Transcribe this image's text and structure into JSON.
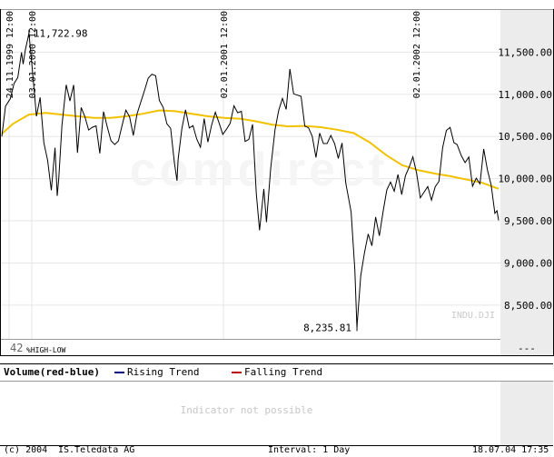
{
  "chart_data": {
    "type": "line",
    "instrument": "INDU.DJI",
    "watermark": "comdirect",
    "date_labels": [
      "24.11.1999 12:00",
      "03.01.2000 12:00",
      "02.01.2001 12:00",
      "02.01.2002 12:00"
    ],
    "y_ticks": [
      {
        "value": 8500,
        "label": "8,500.00"
      },
      {
        "value": 9000,
        "label": "9,000.00"
      },
      {
        "value": 9500,
        "label": "9,500.00"
      },
      {
        "value": 10000,
        "label": "10,000.00"
      },
      {
        "value": 10500,
        "label": "10,500.00"
      },
      {
        "value": 11000,
        "label": "11,000.00"
      },
      {
        "value": 11500,
        "label": "11,500.00"
      }
    ],
    "ylim": [
      8100,
      12000
    ],
    "high": {
      "label": "11,722.98",
      "date": "2000-01-14",
      "value": 11722.98
    },
    "low": {
      "label": "8,235.81",
      "date": "2001-09-21",
      "value": 8235.81
    },
    "corner_label": "42",
    "hilo_label": "%HIGH-LOW",
    "right_marker": "---",
    "series": [
      {
        "name": "INDU.DJI",
        "color": "#000000",
        "points": [
          [
            "1999-11-24",
            10500
          ],
          [
            "1999-12-01",
            10860
          ],
          [
            "1999-12-10",
            10950
          ],
          [
            "1999-12-17",
            11130
          ],
          [
            "1999-12-24",
            11200
          ],
          [
            "1999-12-31",
            11497
          ],
          [
            "2000-01-03",
            11357
          ],
          [
            "2000-01-07",
            11522
          ],
          [
            "2000-01-14",
            11723
          ],
          [
            "2000-01-21",
            11250
          ],
          [
            "2000-01-28",
            10740
          ],
          [
            "2000-02-04",
            10964
          ],
          [
            "2000-02-11",
            10425
          ],
          [
            "2000-02-18",
            10220
          ],
          [
            "2000-02-25",
            9862
          ],
          [
            "2000-03-03",
            10367
          ],
          [
            "2000-03-07",
            9796
          ],
          [
            "2000-03-10",
            10000
          ],
          [
            "2000-03-16",
            10630
          ],
          [
            "2000-03-24",
            11112
          ],
          [
            "2000-03-31",
            10922
          ],
          [
            "2000-04-07",
            11111
          ],
          [
            "2000-04-14",
            10306
          ],
          [
            "2000-04-21",
            10844
          ],
          [
            "2000-04-28",
            10734
          ],
          [
            "2000-05-05",
            10577
          ],
          [
            "2000-05-12",
            10609
          ],
          [
            "2000-05-19",
            10626
          ],
          [
            "2000-05-26",
            10300
          ],
          [
            "2000-06-02",
            10794
          ],
          [
            "2000-06-09",
            10615
          ],
          [
            "2000-06-16",
            10450
          ],
          [
            "2000-06-23",
            10404
          ],
          [
            "2000-06-30",
            10448
          ],
          [
            "2000-07-07",
            10635
          ],
          [
            "2000-07-14",
            10813
          ],
          [
            "2000-07-21",
            10733
          ],
          [
            "2000-07-28",
            10512
          ],
          [
            "2000-08-04",
            10767
          ],
          [
            "2000-08-11",
            10908
          ],
          [
            "2000-08-18",
            11046
          ],
          [
            "2000-08-25",
            11192
          ],
          [
            "2000-09-01",
            11238
          ],
          [
            "2000-09-08",
            11220
          ],
          [
            "2000-09-15",
            10927
          ],
          [
            "2000-09-22",
            10847
          ],
          [
            "2000-09-29",
            10651
          ],
          [
            "2000-10-06",
            10596
          ],
          [
            "2000-10-13",
            10192
          ],
          [
            "2000-10-18",
            9976
          ],
          [
            "2000-10-20",
            10226
          ],
          [
            "2000-10-27",
            10590
          ],
          [
            "2000-11-03",
            10817
          ],
          [
            "2000-11-10",
            10602
          ],
          [
            "2000-11-17",
            10629
          ],
          [
            "2000-11-24",
            10470
          ],
          [
            "2000-12-01",
            10373
          ],
          [
            "2000-12-08",
            10712
          ],
          [
            "2000-12-15",
            10434
          ],
          [
            "2000-12-22",
            10635
          ],
          [
            "2000-12-29",
            10788
          ],
          [
            "2001-01-05",
            10662
          ],
          [
            "2001-01-12",
            10525
          ],
          [
            "2001-01-19",
            10587
          ],
          [
            "2001-01-26",
            10659
          ],
          [
            "2001-02-02",
            10864
          ],
          [
            "2001-02-09",
            10781
          ],
          [
            "2001-02-16",
            10799
          ],
          [
            "2001-02-23",
            10441
          ],
          [
            "2001-03-02",
            10466
          ],
          [
            "2001-03-09",
            10644
          ],
          [
            "2001-03-16",
            9823
          ],
          [
            "2001-03-22",
            9389
          ],
          [
            "2001-03-30",
            9879
          ],
          [
            "2001-04-04",
            9485
          ],
          [
            "2001-04-12",
            10126
          ],
          [
            "2001-04-20",
            10579
          ],
          [
            "2001-04-27",
            10811
          ],
          [
            "2001-05-04",
            10951
          ],
          [
            "2001-05-11",
            10821
          ],
          [
            "2001-05-18",
            11301
          ],
          [
            "2001-05-25",
            11006
          ],
          [
            "2001-06-01",
            10990
          ],
          [
            "2001-06-08",
            10977
          ],
          [
            "2001-06-15",
            10623
          ],
          [
            "2001-06-22",
            10604
          ],
          [
            "2001-06-29",
            10502
          ],
          [
            "2001-07-06",
            10252
          ],
          [
            "2001-07-13",
            10539
          ],
          [
            "2001-07-20",
            10416
          ],
          [
            "2001-07-27",
            10417
          ],
          [
            "2001-08-03",
            10512
          ],
          [
            "2001-08-10",
            10416
          ],
          [
            "2001-08-17",
            10240
          ],
          [
            "2001-08-24",
            10423
          ],
          [
            "2001-08-31",
            9950
          ],
          [
            "2001-09-10",
            9606
          ],
          [
            "2001-09-17",
            8920
          ],
          [
            "2001-09-21",
            8236
          ],
          [
            "2001-09-28",
            8848
          ],
          [
            "2001-10-05",
            9120
          ],
          [
            "2001-10-12",
            9344
          ],
          [
            "2001-10-19",
            9204
          ],
          [
            "2001-10-26",
            9545
          ],
          [
            "2001-11-02",
            9323
          ],
          [
            "2001-11-09",
            9608
          ],
          [
            "2001-11-16",
            9867
          ],
          [
            "2001-11-23",
            9960
          ],
          [
            "2001-11-30",
            9851
          ],
          [
            "2001-12-07",
            10049
          ],
          [
            "2001-12-14",
            9812
          ],
          [
            "2001-12-21",
            10035
          ],
          [
            "2001-12-28",
            10136
          ],
          [
            "2002-01-04",
            10259
          ],
          [
            "2002-01-11",
            10067
          ],
          [
            "2002-01-18",
            9772
          ],
          [
            "2002-01-25",
            9840
          ],
          [
            "2002-02-01",
            9907
          ],
          [
            "2002-02-08",
            9745
          ],
          [
            "2002-02-15",
            9904
          ],
          [
            "2002-02-22",
            9968
          ],
          [
            "2002-03-01",
            10368
          ],
          [
            "2002-03-08",
            10573
          ],
          [
            "2002-03-15",
            10608
          ],
          [
            "2002-03-22",
            10427
          ],
          [
            "2002-03-28",
            10404
          ],
          [
            "2002-04-05",
            10271
          ],
          [
            "2002-04-12",
            10190
          ],
          [
            "2002-04-19",
            10257
          ],
          [
            "2002-04-26",
            9910
          ],
          [
            "2002-05-03",
            10006
          ],
          [
            "2002-05-10",
            9939
          ],
          [
            "2002-05-17",
            10353
          ],
          [
            "2002-05-24",
            10104
          ],
          [
            "2002-05-31",
            9925
          ],
          [
            "2002-06-07",
            9589
          ],
          [
            "2002-06-11",
            9620
          ],
          [
            "2002-06-14",
            9505
          ]
        ]
      },
      {
        "name": "moving average",
        "color": "#f2c200",
        "points": [
          [
            "1999-11-24",
            10530
          ],
          [
            "1999-12-15",
            10650
          ],
          [
            "2000-01-14",
            10760
          ],
          [
            "2000-02-15",
            10780
          ],
          [
            "2000-03-15",
            10760
          ],
          [
            "2000-04-15",
            10740
          ],
          [
            "2000-05-15",
            10720
          ],
          [
            "2000-06-15",
            10720
          ],
          [
            "2000-07-15",
            10740
          ],
          [
            "2000-08-15",
            10770
          ],
          [
            "2000-09-15",
            10810
          ],
          [
            "2000-10-15",
            10800
          ],
          [
            "2000-11-15",
            10770
          ],
          [
            "2000-12-15",
            10740
          ],
          [
            "2001-01-15",
            10720
          ],
          [
            "2001-02-15",
            10710
          ],
          [
            "2001-03-15",
            10680
          ],
          [
            "2001-04-15",
            10640
          ],
          [
            "2001-05-15",
            10620
          ],
          [
            "2001-06-15",
            10625
          ],
          [
            "2001-07-15",
            10610
          ],
          [
            "2001-08-15",
            10580
          ],
          [
            "2001-09-15",
            10540
          ],
          [
            "2001-10-15",
            10430
          ],
          [
            "2001-11-15",
            10280
          ],
          [
            "2001-12-15",
            10160
          ],
          [
            "2002-01-15",
            10100
          ],
          [
            "2002-02-15",
            10060
          ],
          [
            "2002-03-15",
            10030
          ],
          [
            "2002-04-15",
            9990
          ],
          [
            "2002-05-15",
            9950
          ],
          [
            "2002-06-14",
            9880
          ]
        ]
      }
    ]
  },
  "volume_panel": {
    "title": "Volume(red-blue)",
    "legend": [
      {
        "label": "Rising Trend",
        "color": "#000080"
      },
      {
        "label": "Falling Trend",
        "color": "#c00000"
      }
    ],
    "message": "Indicator not possible"
  },
  "footer": {
    "copyright": "(c) 2004",
    "provider": "IS.Teledata AG",
    "interval": "Interval: 1 Day",
    "timestamp": "18.07.04 17:35"
  }
}
